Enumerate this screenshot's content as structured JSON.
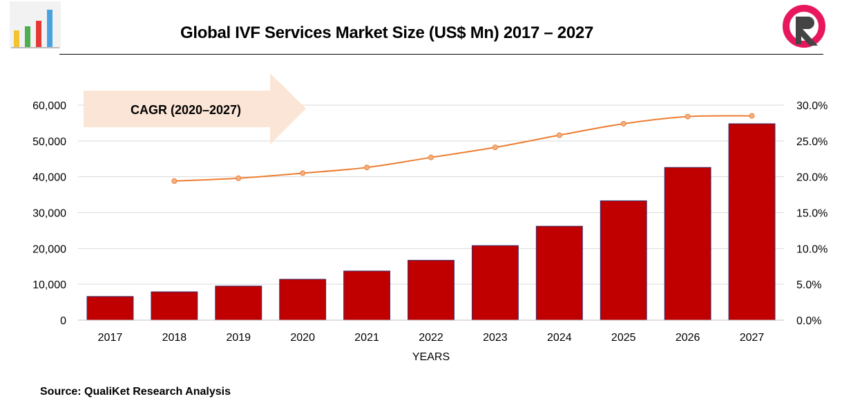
{
  "header": {
    "title": "Global IVF Services Market Size (US$ Mn) 2017 – 2027",
    "left_logo_icon": "bar-chart-logo-icon",
    "right_logo_icon": "r-brand-logo-icon"
  },
  "footer": {
    "source": "Source: QualiKet Research Analysis"
  },
  "chart_data": {
    "type": "bar",
    "title": "Global IVF Services Market Size (US$ Mn) 2017 – 2027",
    "xlabel": "YEARS",
    "ylabel": "",
    "categories": [
      "2017",
      "2018",
      "2019",
      "2020",
      "2021",
      "2022",
      "2023",
      "2024",
      "2025",
      "2026",
      "2027"
    ],
    "series": [
      {
        "type": "bar",
        "axis": "left",
        "color": "#c00000",
        "values": [
          6600,
          7900,
          9500,
          11400,
          13700,
          16700,
          20800,
          26200,
          33300,
          42600,
          54800
        ]
      },
      {
        "type": "line",
        "axis": "right",
        "color": "#ed7d31",
        "values": [
          null,
          19.4,
          19.8,
          20.5,
          21.3,
          22.7,
          24.1,
          25.8,
          27.4,
          28.4,
          28.5
        ]
      }
    ],
    "ylim": [
      0,
      60000
    ],
    "y_ticks": [
      "0",
      "10,000",
      "20,000",
      "30,000",
      "40,000",
      "50,000",
      "60,000"
    ],
    "y2lim": [
      0,
      30
    ],
    "y2_ticks": [
      "0.0%",
      "5.0%",
      "10.0%",
      "15.0%",
      "20.0%",
      "25.0%",
      "30.0%"
    ],
    "grid": true,
    "annotation": {
      "text": "CAGR (2020–2027)",
      "fill": "#fbe5d6"
    }
  }
}
